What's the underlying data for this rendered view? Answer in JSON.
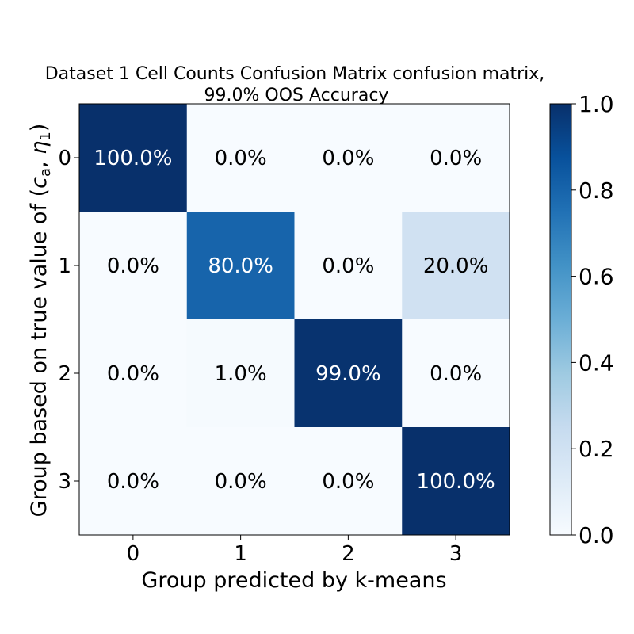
{
  "chart_data": {
    "type": "heatmap",
    "title": "Dataset 1 Cell Counts Confusion Matrix confusion matrix,",
    "subtitle": "99.0% OOS Accuracy",
    "xlabel": "Group predicted by k-means",
    "ylabel": "Group based on true value of (c_a, η_1)",
    "ylabel_parts": {
      "prefix": "Group based on true value of (",
      "var1": "c",
      "sub1": "a",
      "sep": ", ",
      "var2": "η",
      "sub2": "1",
      "suffix": ")"
    },
    "x_categories": [
      "0",
      "1",
      "2",
      "3"
    ],
    "y_categories": [
      "0",
      "1",
      "2",
      "3"
    ],
    "values": [
      [
        1.0,
        0.0,
        0.0,
        0.0
      ],
      [
        0.0,
        0.8,
        0.0,
        0.2
      ],
      [
        0.0,
        0.01,
        0.99,
        0.0
      ],
      [
        0.0,
        0.0,
        0.0,
        1.0
      ]
    ],
    "labels": [
      [
        "100.0%",
        "0.0%",
        "0.0%",
        "0.0%"
      ],
      [
        "0.0%",
        "80.0%",
        "0.0%",
        "20.0%"
      ],
      [
        "0.0%",
        "1.0%",
        "99.0%",
        "0.0%"
      ],
      [
        "0.0%",
        "0.0%",
        "0.0%",
        "100.0%"
      ]
    ],
    "colormap": "Blues",
    "colorbar": {
      "range": [
        0,
        1
      ],
      "ticks": [
        "0.0",
        "0.2",
        "0.4",
        "0.6",
        "0.8",
        "1.0"
      ]
    },
    "text_colors": {
      "light": "#ffffff",
      "dark": "#000000"
    }
  }
}
